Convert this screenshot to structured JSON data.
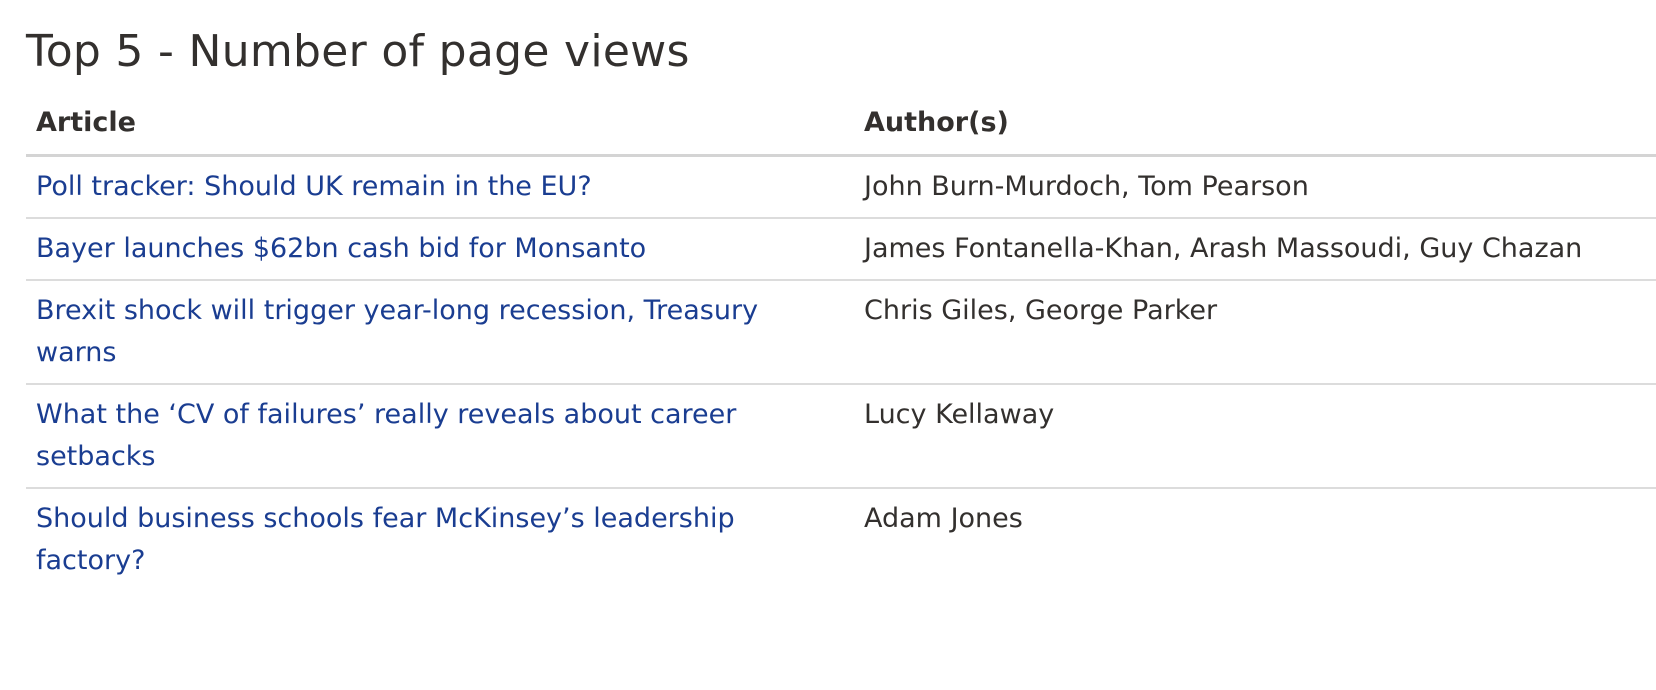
{
  "title": "Top 5 - Number of page views",
  "columns": {
    "article": "Article",
    "authors": "Author(s)"
  },
  "rows": [
    {
      "article": "Poll tracker: Should UK remain in the EU?",
      "authors": "John Burn-Murdoch, Tom Pearson"
    },
    {
      "article": "Bayer launches $62bn cash bid for Monsanto",
      "authors": "James Fontanella-Khan, Arash Massoudi, Guy Chazan"
    },
    {
      "article": "Brexit shock will trigger year-long recession, Treasury warns",
      "authors": "Chris Giles, George Parker"
    },
    {
      "article": "What the ‘CV of failures’ really reveals about career setbacks",
      "authors": "Lucy Kellaway"
    },
    {
      "article": "Should business schools fear McKinsey’s leadership factory?",
      "authors": "Adam Jones"
    }
  ]
}
